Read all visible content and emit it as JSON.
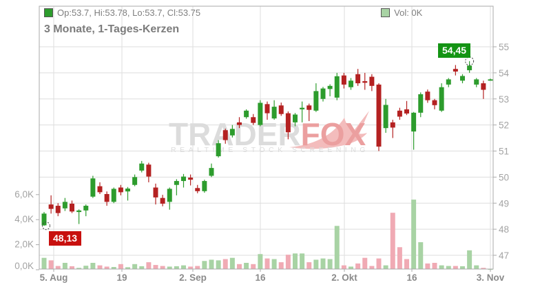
{
  "header": {
    "ohlc_legend": "Op:53.7, Hi:53.78, Lo:53.7, Cl:53.75",
    "volume_legend": "Vol: 0K",
    "title": "3 Monate, 1-Tages-Kerzen"
  },
  "annotations": {
    "low_badge": "48,13",
    "high_badge": "54,45",
    "marked_low_value": 48.13,
    "marked_high_value": 54.45,
    "marked_low_candle_index": 0,
    "marked_high_candle_index": 61
  },
  "watermark": {
    "brand_gray": "TRADER",
    "brand_red": "FOX",
    "tagline": "REALTIME STOCK SCREENING"
  },
  "colors": {
    "candle_up": "#2d9c2d",
    "candle_down": "#b42121",
    "volume_up": "#a8d3a4",
    "volume_down": "#f0aab4",
    "badge_low_bg": "#c8100e",
    "badge_high_bg": "#149414",
    "grid": "#dddddd",
    "border": "#aaaaaa",
    "axis_text": "#a3a3a3",
    "date_text": "#8a8a8a",
    "marker_stroke": "#444444",
    "watermark_gray": "#dcdcdc",
    "watermark_red": "#eb9f9f",
    "watermark_tail": "#f3bcbc"
  },
  "chart_data": {
    "type": "candlestick",
    "title": "3 Monate, 1-Tages-Kerzen",
    "price_ticks": [
      55,
      54,
      53,
      52,
      51,
      50,
      49,
      48,
      47
    ],
    "price_range_shown": [
      47,
      55
    ],
    "volume_tick_labels": [
      "6,0K",
      "4,0K",
      "2,0K",
      "0,0K"
    ],
    "volume_tick_values": [
      6,
      4,
      2,
      0
    ],
    "x_labels": [
      "5. Aug",
      "19",
      "2. Sep",
      "16",
      "2. Okt",
      "16",
      "3. Nov"
    ],
    "legend_position": "top-left",
    "grid": true,
    "candles": [
      {
        "o": 48.15,
        "h": 48.66,
        "l": 48.13,
        "c": 48.6,
        "v": 0.95
      },
      {
        "o": 48.95,
        "h": 49.3,
        "l": 48.6,
        "c": 48.78,
        "v": 0.75
      },
      {
        "o": 48.9,
        "h": 49.0,
        "l": 48.5,
        "c": 48.62,
        "v": 0.3
      },
      {
        "o": 48.8,
        "h": 49.2,
        "l": 48.7,
        "c": 49.05,
        "v": 0.55
      },
      {
        "o": 48.98,
        "h": 49.1,
        "l": 48.62,
        "c": 48.68,
        "v": 0.28
      },
      {
        "o": 48.66,
        "h": 48.76,
        "l": 48.2,
        "c": 48.72,
        "v": 0.15
      },
      {
        "o": 48.72,
        "h": 48.95,
        "l": 48.5,
        "c": 48.9,
        "v": 0.32
      },
      {
        "o": 49.25,
        "h": 50.05,
        "l": 49.2,
        "c": 49.95,
        "v": 0.55
      },
      {
        "o": 49.65,
        "h": 49.8,
        "l": 49.35,
        "c": 49.42,
        "v": 0.35
      },
      {
        "o": 49.35,
        "h": 49.45,
        "l": 48.9,
        "c": 49.05,
        "v": 0.25
      },
      {
        "o": 49.05,
        "h": 49.6,
        "l": 49.0,
        "c": 49.55,
        "v": 0.22
      },
      {
        "o": 49.6,
        "h": 49.7,
        "l": 49.3,
        "c": 49.42,
        "v": 0.45
      },
      {
        "o": 49.45,
        "h": 49.62,
        "l": 49.1,
        "c": 49.56,
        "v": 0.2
      },
      {
        "o": 49.7,
        "h": 50.1,
        "l": 49.65,
        "c": 50.0,
        "v": 0.45
      },
      {
        "o": 50.25,
        "h": 50.62,
        "l": 50.18,
        "c": 50.52,
        "v": 0.28
      },
      {
        "o": 50.48,
        "h": 50.55,
        "l": 49.8,
        "c": 50.02,
        "v": 0.6
      },
      {
        "o": 49.6,
        "h": 49.75,
        "l": 48.95,
        "c": 49.22,
        "v": 0.38
      },
      {
        "o": 49.2,
        "h": 49.32,
        "l": 48.88,
        "c": 48.98,
        "v": 0.3
      },
      {
        "o": 49.05,
        "h": 49.6,
        "l": 48.75,
        "c": 49.55,
        "v": 0.25
      },
      {
        "o": 49.7,
        "h": 49.92,
        "l": 49.3,
        "c": 49.85,
        "v": 0.28
      },
      {
        "o": 49.85,
        "h": 50.12,
        "l": 49.6,
        "c": 50.02,
        "v": 0.35
      },
      {
        "o": 49.98,
        "h": 50.1,
        "l": 49.68,
        "c": 49.9,
        "v": 0.25
      },
      {
        "o": 49.58,
        "h": 49.7,
        "l": 49.38,
        "c": 49.46,
        "v": 0.3
      },
      {
        "o": 49.46,
        "h": 49.9,
        "l": 49.4,
        "c": 49.85,
        "v": 0.7
      },
      {
        "o": 50.05,
        "h": 50.52,
        "l": 50.0,
        "c": 50.35,
        "v": 0.8
      },
      {
        "o": 50.8,
        "h": 51.42,
        "l": 50.75,
        "c": 51.3,
        "v": 0.75
      },
      {
        "o": 51.8,
        "h": 51.86,
        "l": 51.28,
        "c": 51.42,
        "v": 0.85
      },
      {
        "o": 51.6,
        "h": 52.0,
        "l": 51.52,
        "c": 51.85,
        "v": 0.95
      },
      {
        "o": 52.1,
        "h": 52.3,
        "l": 51.88,
        "c": 52.0,
        "v": 0.45
      },
      {
        "o": 52.3,
        "h": 52.6,
        "l": 52.24,
        "c": 52.55,
        "v": 0.55
      },
      {
        "o": 52.3,
        "h": 52.42,
        "l": 52.0,
        "c": 52.08,
        "v": 0.45
      },
      {
        "o": 52.0,
        "h": 52.95,
        "l": 51.95,
        "c": 52.85,
        "v": 1.25
      },
      {
        "o": 52.8,
        "h": 52.9,
        "l": 52.2,
        "c": 52.45,
        "v": 0.9
      },
      {
        "o": 52.25,
        "h": 52.95,
        "l": 52.2,
        "c": 52.7,
        "v": 0.85
      },
      {
        "o": 52.75,
        "h": 52.86,
        "l": 52.35,
        "c": 52.42,
        "v": 0.6
      },
      {
        "o": 52.45,
        "h": 52.52,
        "l": 51.45,
        "c": 51.72,
        "v": 1.2
      },
      {
        "o": 52.1,
        "h": 52.46,
        "l": 51.95,
        "c": 52.4,
        "v": 1.3
      },
      {
        "o": 52.6,
        "h": 52.9,
        "l": 52.1,
        "c": 52.66,
        "v": 1.3
      },
      {
        "o": 52.75,
        "h": 52.82,
        "l": 52.15,
        "c": 52.58,
        "v": 0.6
      },
      {
        "o": 52.55,
        "h": 53.6,
        "l": 52.5,
        "c": 53.3,
        "v": 0.8
      },
      {
        "o": 53.0,
        "h": 53.46,
        "l": 52.9,
        "c": 53.4,
        "v": 0.9
      },
      {
        "o": 53.38,
        "h": 53.56,
        "l": 53.1,
        "c": 53.5,
        "v": 0.85
      },
      {
        "o": 53.05,
        "h": 54.0,
        "l": 52.95,
        "c": 53.87,
        "v": 3.5
      },
      {
        "o": 53.9,
        "h": 54.0,
        "l": 53.4,
        "c": 53.55,
        "v": 0.35
      },
      {
        "o": 53.45,
        "h": 53.8,
        "l": 53.35,
        "c": 53.7,
        "v": 0.25
      },
      {
        "o": 53.95,
        "h": 54.15,
        "l": 53.5,
        "c": 53.6,
        "v": 0.5
      },
      {
        "o": 53.68,
        "h": 54.0,
        "l": 53.35,
        "c": 53.62,
        "v": 0.95
      },
      {
        "o": 53.85,
        "h": 53.95,
        "l": 53.3,
        "c": 53.5,
        "v": 0.3
      },
      {
        "o": 53.55,
        "h": 53.6,
        "l": 51.0,
        "c": 51.17,
        "v": 0.9
      },
      {
        "o": 51.88,
        "h": 53.0,
        "l": 51.7,
        "c": 52.77,
        "v": 0.35
      },
      {
        "o": 52.1,
        "h": 52.2,
        "l": 51.5,
        "c": 51.9,
        "v": 4.55
      },
      {
        "o": 52.55,
        "h": 52.66,
        "l": 52.2,
        "c": 52.32,
        "v": 1.8
      },
      {
        "o": 52.6,
        "h": 52.92,
        "l": 52.38,
        "c": 52.44,
        "v": 0.85
      },
      {
        "o": 51.75,
        "h": 52.5,
        "l": 51.05,
        "c": 52.47,
        "v": 5.6
      },
      {
        "o": 52.47,
        "h": 53.25,
        "l": 52.3,
        "c": 53.18,
        "v": 2.2
      },
      {
        "o": 53.28,
        "h": 53.36,
        "l": 52.85,
        "c": 52.95,
        "v": 0.5
      },
      {
        "o": 52.95,
        "h": 53.0,
        "l": 52.6,
        "c": 52.76,
        "v": 0.55
      },
      {
        "o": 52.55,
        "h": 53.6,
        "l": 52.5,
        "c": 53.45,
        "v": 0.35
      },
      {
        "o": 53.55,
        "h": 53.8,
        "l": 53.45,
        "c": 53.75,
        "v": 0.3
      },
      {
        "o": 54.15,
        "h": 54.3,
        "l": 53.9,
        "c": 54.05,
        "v": 0.3
      },
      {
        "o": 53.7,
        "h": 53.95,
        "l": 53.6,
        "c": 53.88,
        "v": 0.28
      },
      {
        "o": 54.1,
        "h": 54.45,
        "l": 54.0,
        "c": 54.28,
        "v": 1.55
      },
      {
        "o": 53.55,
        "h": 53.8,
        "l": 53.45,
        "c": 53.75,
        "v": 0.35
      },
      {
        "o": 53.6,
        "h": 53.7,
        "l": 53.0,
        "c": 53.35,
        "v": 0.15
      },
      {
        "o": 53.7,
        "h": 53.78,
        "l": 53.7,
        "c": 53.75,
        "v": 0.05
      }
    ]
  }
}
